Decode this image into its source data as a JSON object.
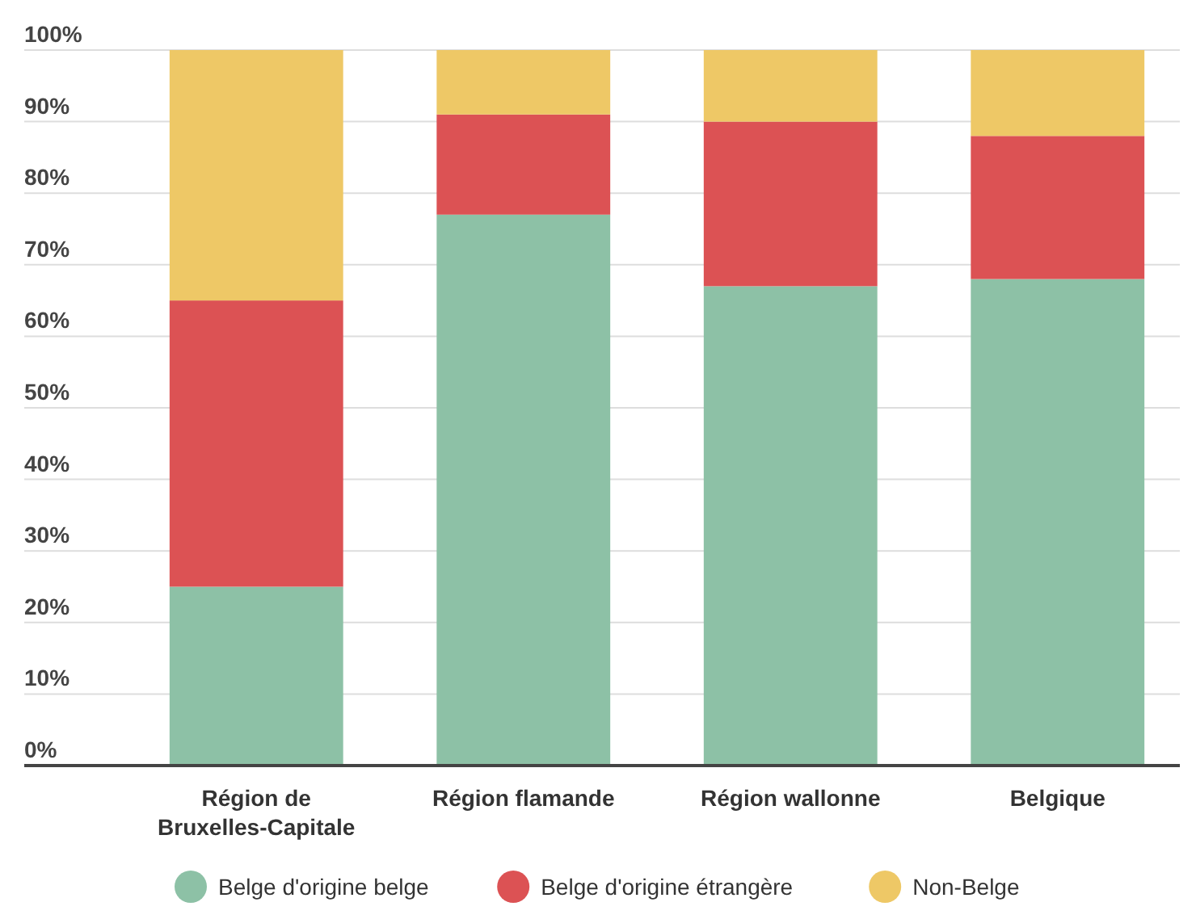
{
  "chart_data": {
    "type": "bar",
    "stacked": true,
    "categories": [
      "Région de Bruxelles-Capitale",
      "Région flamande",
      "Région wallonne",
      "Belgique"
    ],
    "series": [
      {
        "name": "Belge d'origine belge",
        "color": "#8dc1a6",
        "values": [
          25,
          77,
          67,
          68
        ]
      },
      {
        "name": "Belge d'origine étrangère",
        "color": "#dc5254",
        "values": [
          40,
          14,
          23,
          20
        ]
      },
      {
        "name": "Non-Belge",
        "color": "#eec866",
        "values": [
          35,
          9,
          10,
          12
        ]
      }
    ],
    "ylim": [
      0,
      100
    ],
    "yticks": [
      {
        "value": 0,
        "label": "0%"
      },
      {
        "value": 10,
        "label": "10%"
      },
      {
        "value": 20,
        "label": "20%"
      },
      {
        "value": 30,
        "label": "30%"
      },
      {
        "value": 40,
        "label": "40%"
      },
      {
        "value": 50,
        "label": "50%"
      },
      {
        "value": 60,
        "label": "60%"
      },
      {
        "value": 70,
        "label": "70%"
      },
      {
        "value": 80,
        "label": "80%"
      },
      {
        "value": 90,
        "label": "90%"
      },
      {
        "value": 100,
        "label": "100%"
      }
    ],
    "grid": "y",
    "legend": "bottom"
  }
}
